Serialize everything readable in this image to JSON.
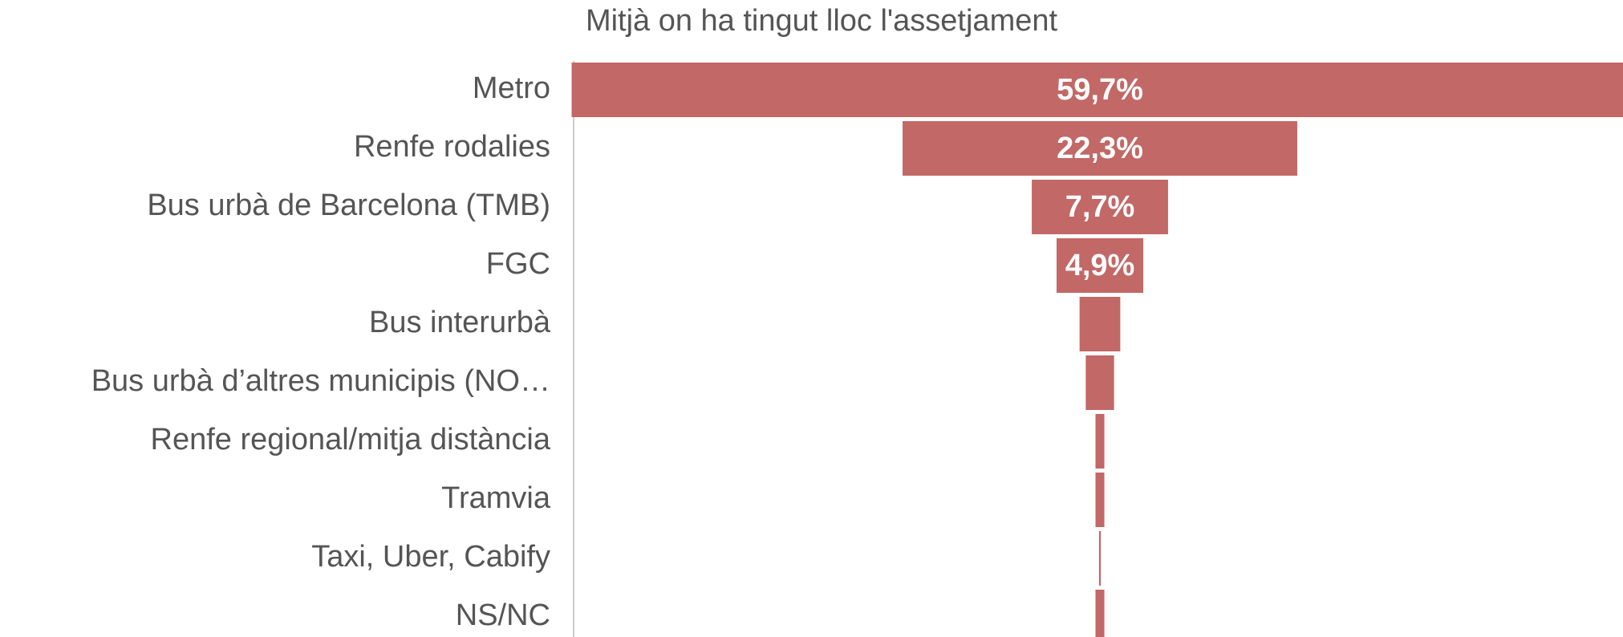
{
  "chart_data": {
    "type": "funnel",
    "title": "Mitjà on ha tingut lloc l'assetjament",
    "categories": [
      "Metro",
      "Renfe rodalies",
      "Bus urbà de Barcelona (TMB)",
      "FGC",
      "Bus interurbà",
      "Bus urbà d’altres municipis (NO…",
      "Renfe regional/mitja distància",
      "Tramvia",
      "Taxi, Uber, Cabify",
      "NS/NC"
    ],
    "values": [
      59.7,
      22.3,
      7.7,
      4.9,
      2.3,
      1.6,
      0.5,
      0.5,
      0.1,
      0.5
    ],
    "value_labels": [
      "59,7%",
      "22,3%",
      "7,7%",
      "4,9%",
      null,
      null,
      null,
      null,
      null,
      null
    ],
    "color": "#c26866"
  }
}
